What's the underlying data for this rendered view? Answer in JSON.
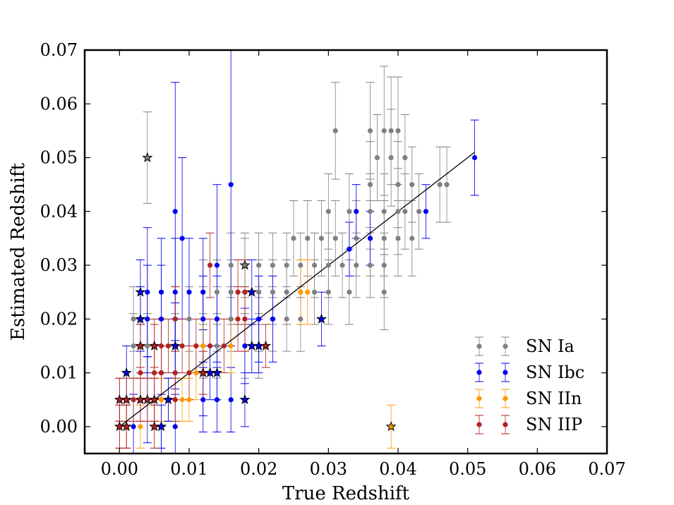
{
  "chart_data": {
    "type": "scatter",
    "title": "",
    "xlabel": "True Redshift",
    "ylabel": "Estimated Redshift",
    "xlim": [
      -0.005,
      0.07
    ],
    "ylim": [
      -0.005,
      0.07
    ],
    "xticks": [
      "0.00",
      "0.01",
      "0.02",
      "0.03",
      "0.04",
      "0.05",
      "0.06",
      "0.07"
    ],
    "yticks": [
      "0.00",
      "0.01",
      "0.02",
      "0.03",
      "0.04",
      "0.05",
      "0.06",
      "0.07"
    ],
    "legend_position": "bottom-right",
    "reference_line": {
      "x": [
        0.0,
        0.051
      ],
      "y": [
        0.0,
        0.051
      ]
    },
    "colors": {
      "SN Ia": "#808080",
      "SN Ibc": "#0000ee",
      "SN IIn": "#ff9a00",
      "SN IIP": "#b22222",
      "line": "#000000"
    },
    "series": [
      {
        "name": "SN Ia",
        "marker": "circle",
        "points": [
          {
            "x": 0.036,
            "y": 0.055,
            "e": 0.009
          },
          {
            "x": 0.038,
            "y": 0.055,
            "e": 0.012
          },
          {
            "x": 0.039,
            "y": 0.055,
            "e": 0.01
          },
          {
            "x": 0.04,
            "y": 0.055,
            "e": 0.01
          },
          {
            "x": 0.031,
            "y": 0.055,
            "e": 0.009
          },
          {
            "x": 0.037,
            "y": 0.05,
            "e": 0.008
          },
          {
            "x": 0.039,
            "y": 0.05,
            "e": 0.009
          },
          {
            "x": 0.041,
            "y": 0.05,
            "e": 0.008
          },
          {
            "x": 0.036,
            "y": 0.045,
            "e": 0.008
          },
          {
            "x": 0.04,
            "y": 0.045,
            "e": 0.008
          },
          {
            "x": 0.042,
            "y": 0.045,
            "e": 0.007
          },
          {
            "x": 0.046,
            "y": 0.045,
            "e": 0.007
          },
          {
            "x": 0.047,
            "y": 0.045,
            "e": 0.007
          },
          {
            "x": 0.03,
            "y": 0.04,
            "e": 0.007
          },
          {
            "x": 0.033,
            "y": 0.04,
            "e": 0.007
          },
          {
            "x": 0.036,
            "y": 0.04,
            "e": 0.007
          },
          {
            "x": 0.038,
            "y": 0.04,
            "e": 0.007
          },
          {
            "x": 0.04,
            "y": 0.04,
            "e": 0.008
          },
          {
            "x": 0.041,
            "y": 0.04,
            "e": 0.007
          },
          {
            "x": 0.043,
            "y": 0.04,
            "e": 0.007
          },
          {
            "x": 0.025,
            "y": 0.035,
            "e": 0.007
          },
          {
            "x": 0.027,
            "y": 0.035,
            "e": 0.007
          },
          {
            "x": 0.029,
            "y": 0.035,
            "e": 0.007
          },
          {
            "x": 0.031,
            "y": 0.035,
            "e": 0.007
          },
          {
            "x": 0.034,
            "y": 0.035,
            "e": 0.007
          },
          {
            "x": 0.036,
            "y": 0.035,
            "e": 0.007
          },
          {
            "x": 0.038,
            "y": 0.035,
            "e": 0.007
          },
          {
            "x": 0.04,
            "y": 0.035,
            "e": 0.007
          },
          {
            "x": 0.042,
            "y": 0.035,
            "e": 0.007
          },
          {
            "x": 0.016,
            "y": 0.03,
            "e": 0.006
          },
          {
            "x": 0.018,
            "y": 0.03,
            "e": 0.006
          },
          {
            "x": 0.02,
            "y": 0.03,
            "e": 0.006
          },
          {
            "x": 0.022,
            "y": 0.03,
            "e": 0.006
          },
          {
            "x": 0.024,
            "y": 0.03,
            "e": 0.006
          },
          {
            "x": 0.026,
            "y": 0.03,
            "e": 0.006
          },
          {
            "x": 0.028,
            "y": 0.03,
            "e": 0.006
          },
          {
            "x": 0.03,
            "y": 0.03,
            "e": 0.006
          },
          {
            "x": 0.032,
            "y": 0.03,
            "e": 0.006
          },
          {
            "x": 0.034,
            "y": 0.03,
            "e": 0.006
          },
          {
            "x": 0.036,
            "y": 0.03,
            "e": 0.006
          },
          {
            "x": 0.038,
            "y": 0.03,
            "e": 0.006
          },
          {
            "x": 0.012,
            "y": 0.025,
            "e": 0.006
          },
          {
            "x": 0.014,
            "y": 0.025,
            "e": 0.006
          },
          {
            "x": 0.016,
            "y": 0.025,
            "e": 0.006
          },
          {
            "x": 0.018,
            "y": 0.025,
            "e": 0.006
          },
          {
            "x": 0.02,
            "y": 0.025,
            "e": 0.006
          },
          {
            "x": 0.022,
            "y": 0.025,
            "e": 0.006
          },
          {
            "x": 0.024,
            "y": 0.025,
            "e": 0.006
          },
          {
            "x": 0.026,
            "y": 0.025,
            "e": 0.006
          },
          {
            "x": 0.028,
            "y": 0.025,
            "e": 0.006
          },
          {
            "x": 0.03,
            "y": 0.025,
            "e": 0.006
          },
          {
            "x": 0.033,
            "y": 0.025,
            "e": 0.006
          },
          {
            "x": 0.038,
            "y": 0.025,
            "e": 0.007
          },
          {
            "x": 0.002,
            "y": 0.02,
            "e": 0.006
          },
          {
            "x": 0.008,
            "y": 0.02,
            "e": 0.006
          },
          {
            "x": 0.01,
            "y": 0.02,
            "e": 0.006
          },
          {
            "x": 0.012,
            "y": 0.02,
            "e": 0.006
          },
          {
            "x": 0.014,
            "y": 0.02,
            "e": 0.006
          },
          {
            "x": 0.016,
            "y": 0.02,
            "e": 0.006
          },
          {
            "x": 0.018,
            "y": 0.02,
            "e": 0.006
          },
          {
            "x": 0.02,
            "y": 0.02,
            "e": 0.006
          },
          {
            "x": 0.022,
            "y": 0.02,
            "e": 0.006
          },
          {
            "x": 0.024,
            "y": 0.02,
            "e": 0.006
          },
          {
            "x": 0.026,
            "y": 0.02,
            "e": 0.006
          },
          {
            "x": 0.002,
            "y": 0.015,
            "e": 0.006
          },
          {
            "x": 0.004,
            "y": 0.015,
            "e": 0.006
          },
          {
            "x": 0.008,
            "y": 0.015,
            "e": 0.006
          },
          {
            "x": 0.012,
            "y": 0.015,
            "e": 0.006
          },
          {
            "x": 0.014,
            "y": 0.015,
            "e": 0.006
          },
          {
            "x": 0.018,
            "y": 0.015,
            "e": 0.006
          },
          {
            "x": 0.02,
            "y": 0.015,
            "e": 0.006
          }
        ]
      },
      {
        "name": "SN Ibc",
        "marker": "circle",
        "points": [
          {
            "x": 0.051,
            "y": 0.05,
            "e": 0.007
          },
          {
            "x": 0.044,
            "y": 0.04,
            "e": 0.005
          },
          {
            "x": 0.034,
            "y": 0.04,
            "e": 0.005
          },
          {
            "x": 0.036,
            "y": 0.035,
            "e": 0.005
          },
          {
            "x": 0.033,
            "y": 0.033,
            "e": 0.005
          },
          {
            "x": 0.016,
            "y": 0.045,
            "e": 0.03
          },
          {
            "x": 0.008,
            "y": 0.04,
            "e": 0.024
          },
          {
            "x": 0.009,
            "y": 0.035,
            "e": 0.015
          },
          {
            "x": 0.014,
            "y": 0.03,
            "e": 0.015
          },
          {
            "x": 0.004,
            "y": 0.025,
            "e": 0.012
          },
          {
            "x": 0.006,
            "y": 0.025,
            "e": 0.01
          },
          {
            "x": 0.008,
            "y": 0.025,
            "e": 0.01
          },
          {
            "x": 0.01,
            "y": 0.025,
            "e": 0.01
          },
          {
            "x": 0.012,
            "y": 0.025,
            "e": 0.01
          },
          {
            "x": 0.004,
            "y": 0.02,
            "e": 0.01
          },
          {
            "x": 0.006,
            "y": 0.02,
            "e": 0.01
          },
          {
            "x": 0.012,
            "y": 0.02,
            "e": 0.008
          },
          {
            "x": 0.014,
            "y": 0.02,
            "e": 0.008
          },
          {
            "x": 0.02,
            "y": 0.02,
            "e": 0.008
          },
          {
            "x": 0.022,
            "y": 0.02,
            "e": 0.008
          },
          {
            "x": 0.008,
            "y": 0.015,
            "e": 0.008
          },
          {
            "x": 0.018,
            "y": 0.015,
            "e": 0.007
          },
          {
            "x": 0.006,
            "y": 0.01,
            "e": 0.01
          },
          {
            "x": 0.012,
            "y": 0.01,
            "e": 0.008
          },
          {
            "x": 0.016,
            "y": 0.005,
            "e": 0.006
          },
          {
            "x": 0.014,
            "y": 0.005,
            "e": 0.006
          },
          {
            "x": 0.012,
            "y": 0.005,
            "e": 0.006
          },
          {
            "x": 0.004,
            "y": 0.005,
            "e": 0.008
          },
          {
            "x": 0.002,
            "y": 0.0,
            "e": 0.006
          },
          {
            "x": 0.006,
            "y": 0.0,
            "e": 0.006
          },
          {
            "x": 0.008,
            "y": 0.0,
            "e": 0.006
          }
        ]
      },
      {
        "name": "SN IIn",
        "marker": "circle",
        "points": [
          {
            "x": 0.027,
            "y": 0.025,
            "e": 0.006
          },
          {
            "x": 0.026,
            "y": 0.025,
            "e": 0.006
          },
          {
            "x": 0.012,
            "y": 0.015,
            "e": 0.005
          },
          {
            "x": 0.016,
            "y": 0.015,
            "e": 0.005
          },
          {
            "x": 0.01,
            "y": 0.01,
            "e": 0.005
          },
          {
            "x": 0.011,
            "y": 0.01,
            "e": 0.005
          },
          {
            "x": 0.006,
            "y": 0.005,
            "e": 0.004
          },
          {
            "x": 0.009,
            "y": 0.005,
            "e": 0.004
          },
          {
            "x": 0.01,
            "y": 0.005,
            "e": 0.004
          },
          {
            "x": 0.001,
            "y": 0.0,
            "e": 0.004
          },
          {
            "x": 0.003,
            "y": 0.0,
            "e": 0.004
          },
          {
            "x": 0.005,
            "y": 0.0,
            "e": 0.004
          }
        ]
      },
      {
        "name": "SN IIP",
        "marker": "circle",
        "points": [
          {
            "x": 0.013,
            "y": 0.03,
            "e": 0.006
          },
          {
            "x": 0.017,
            "y": 0.025,
            "e": 0.006
          },
          {
            "x": 0.018,
            "y": 0.025,
            "e": 0.006
          },
          {
            "x": 0.017,
            "y": 0.02,
            "e": 0.006
          },
          {
            "x": 0.018,
            "y": 0.02,
            "e": 0.006
          },
          {
            "x": 0.008,
            "y": 0.02,
            "e": 0.006
          },
          {
            "x": 0.003,
            "y": 0.015,
            "e": 0.005
          },
          {
            "x": 0.005,
            "y": 0.015,
            "e": 0.005
          },
          {
            "x": 0.006,
            "y": 0.015,
            "e": 0.005
          },
          {
            "x": 0.007,
            "y": 0.015,
            "e": 0.005
          },
          {
            "x": 0.009,
            "y": 0.015,
            "e": 0.005
          },
          {
            "x": 0.011,
            "y": 0.015,
            "e": 0.005
          },
          {
            "x": 0.013,
            "y": 0.015,
            "e": 0.005
          },
          {
            "x": 0.015,
            "y": 0.015,
            "e": 0.005
          },
          {
            "x": 0.003,
            "y": 0.01,
            "e": 0.005
          },
          {
            "x": 0.005,
            "y": 0.01,
            "e": 0.005
          },
          {
            "x": 0.006,
            "y": 0.01,
            "e": 0.005
          },
          {
            "x": 0.008,
            "y": 0.01,
            "e": 0.005
          },
          {
            "x": 0.01,
            "y": 0.01,
            "e": 0.005
          },
          {
            "x": 0.0,
            "y": 0.005,
            "e": 0.004
          },
          {
            "x": 0.002,
            "y": 0.005,
            "e": 0.004
          },
          {
            "x": 0.003,
            "y": 0.005,
            "e": 0.004
          },
          {
            "x": 0.005,
            "y": 0.005,
            "e": 0.004
          },
          {
            "x": 0.007,
            "y": 0.005,
            "e": 0.004
          },
          {
            "x": 0.008,
            "y": 0.005,
            "e": 0.004
          },
          {
            "x": 0.0,
            "y": 0.0,
            "e": 0.004
          },
          {
            "x": 0.001,
            "y": 0.0,
            "e": 0.004
          }
        ]
      }
    ],
    "stars": [
      {
        "series": "SN Ia",
        "x": 0.004,
        "y": 0.05,
        "e": 0.0085
      },
      {
        "series": "SN Ia",
        "x": 0.018,
        "y": 0.03,
        "e": 0.005
      },
      {
        "series": "SN IIn",
        "x": 0.039,
        "y": 0.0,
        "e": 0.004
      },
      {
        "series": "SN Ibc",
        "x": 0.003,
        "y": 0.025,
        "e": 0.006
      },
      {
        "series": "SN Ibc",
        "x": 0.003,
        "y": 0.02,
        "e": 0.006
      },
      {
        "series": "SN Ibc",
        "x": 0.019,
        "y": 0.025,
        "e": 0.006
      },
      {
        "series": "SN Ibc",
        "x": 0.029,
        "y": 0.02,
        "e": 0.005
      },
      {
        "series": "SN Ibc",
        "x": 0.001,
        "y": 0.01,
        "e": 0.005
      },
      {
        "series": "SN Ibc",
        "x": 0.013,
        "y": 0.01,
        "e": 0.005
      },
      {
        "series": "SN Ibc",
        "x": 0.014,
        "y": 0.01,
        "e": 0.005
      },
      {
        "series": "SN Ibc",
        "x": 0.008,
        "y": 0.015,
        "e": 0.005
      },
      {
        "series": "SN Ibc",
        "x": 0.019,
        "y": 0.015,
        "e": 0.005
      },
      {
        "series": "SN Ibc",
        "x": 0.02,
        "y": 0.015,
        "e": 0.005
      },
      {
        "series": "SN Ibc",
        "x": 0.018,
        "y": 0.005,
        "e": 0.005
      },
      {
        "series": "SN Ibc",
        "x": 0.006,
        "y": 0.0,
        "e": 0.004
      },
      {
        "series": "SN Ibc",
        "x": 0.007,
        "y": 0.005,
        "e": 0.004
      },
      {
        "series": "SN IIP",
        "x": 0.0,
        "y": 0.005,
        "e": 0.004
      },
      {
        "series": "SN IIP",
        "x": 0.001,
        "y": 0.005,
        "e": 0.004
      },
      {
        "series": "SN IIP",
        "x": 0.003,
        "y": 0.005,
        "e": 0.004
      },
      {
        "series": "SN IIP",
        "x": 0.004,
        "y": 0.005,
        "e": 0.004
      },
      {
        "series": "SN IIP",
        "x": 0.005,
        "y": 0.005,
        "e": 0.004
      },
      {
        "series": "SN IIP",
        "x": 0.0,
        "y": 0.0,
        "e": 0.004
      },
      {
        "series": "SN IIP",
        "x": 0.001,
        "y": 0.0,
        "e": 0.004
      },
      {
        "series": "SN IIP",
        "x": 0.005,
        "y": 0.0,
        "e": 0.004
      },
      {
        "series": "SN IIP",
        "x": 0.003,
        "y": 0.015,
        "e": 0.004
      },
      {
        "series": "SN IIP",
        "x": 0.005,
        "y": 0.015,
        "e": 0.004
      },
      {
        "series": "SN IIP",
        "x": 0.021,
        "y": 0.015,
        "e": 0.004
      },
      {
        "series": "SN IIP",
        "x": 0.012,
        "y": 0.01,
        "e": 0.004
      }
    ]
  }
}
